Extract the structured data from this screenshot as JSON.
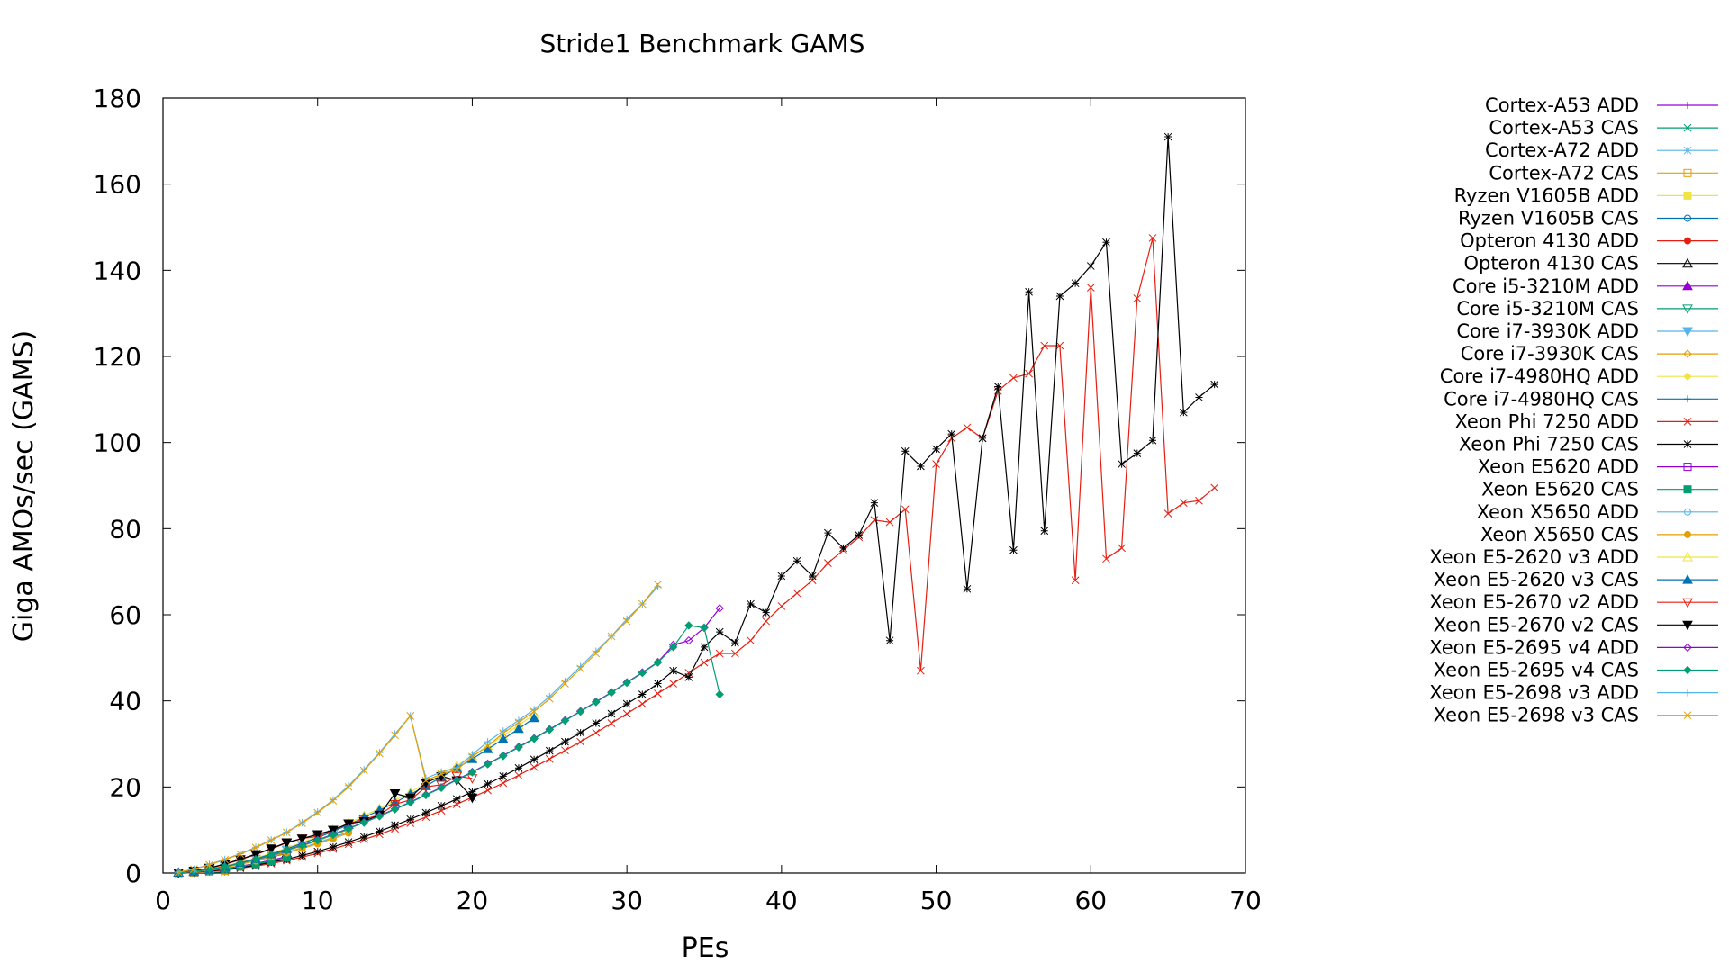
{
  "chart_data": {
    "type": "line",
    "title": "Stride1 Benchmark GAMS",
    "xlabel": "PEs",
    "ylabel": "Giga AMOs/sec (GAMS)",
    "xlim": [
      0,
      70
    ],
    "ylim": [
      0,
      180
    ],
    "xticks": [
      "0",
      "10",
      "20",
      "30",
      "40",
      "50",
      "60",
      "70"
    ],
    "yticks": [
      "0",
      "20",
      "40",
      "60",
      "80",
      "100",
      "120",
      "140",
      "160",
      "180"
    ],
    "grid": false,
    "legend_position": "right",
    "series": [
      {
        "name": "Cortex-A53 ADD",
        "color": "#9400d3",
        "marker": "plus",
        "x": [
          1,
          2,
          3,
          4
        ],
        "y": [
          0.0,
          0.1,
          0.2,
          0.3
        ]
      },
      {
        "name": "Cortex-A53 CAS",
        "color": "#009e73",
        "marker": "cross",
        "x": [
          1,
          2,
          3,
          4
        ],
        "y": [
          0.0,
          0.1,
          0.2,
          0.3
        ]
      },
      {
        "name": "Cortex-A72 ADD",
        "color": "#56b4e9",
        "marker": "star",
        "x": [
          1,
          2,
          3,
          4
        ],
        "y": [
          0.0,
          0.1,
          0.3,
          0.5
        ]
      },
      {
        "name": "Cortex-A72 CAS",
        "color": "#e69f00",
        "marker": "square-open",
        "x": [
          1,
          2,
          3,
          4
        ],
        "y": [
          0.0,
          0.1,
          0.3,
          0.5
        ]
      },
      {
        "name": "Ryzen V1605B ADD",
        "color": "#f0e442",
        "marker": "square-filled",
        "x": [
          1,
          2,
          3,
          4,
          5,
          6,
          7,
          8
        ],
        "y": [
          0.1,
          0.2,
          0.6,
          1.1,
          1.6,
          2.2,
          2.8,
          3.4
        ]
      },
      {
        "name": "Ryzen V1605B CAS",
        "color": "#0072b2",
        "marker": "circle-open",
        "x": [
          1,
          2,
          3,
          4,
          5,
          6,
          7,
          8
        ],
        "y": [
          0.1,
          0.2,
          0.5,
          1.0,
          1.5,
          2.0,
          2.6,
          3.2
        ]
      },
      {
        "name": "Opteron 4130 ADD",
        "color": "#e51e10",
        "marker": "circle-filled",
        "x": [
          1,
          2,
          3,
          4,
          5,
          6,
          7,
          8
        ],
        "y": [
          0.1,
          0.3,
          0.8,
          1.5,
          2.3,
          3.1,
          4.0,
          4.9
        ]
      },
      {
        "name": "Opteron 4130 CAS",
        "color": "#000000",
        "marker": "triangle-open",
        "x": [
          1,
          2,
          3,
          4,
          5,
          6,
          7,
          8
        ],
        "y": [
          0.1,
          0.3,
          0.7,
          1.4,
          2.1,
          2.9,
          3.7,
          4.6
        ]
      },
      {
        "name": "Core i5-3210M ADD",
        "color": "#9400d3",
        "marker": "triangle-filled",
        "x": [
          1,
          2,
          3,
          4
        ],
        "y": [
          0.1,
          0.3,
          0.7,
          1.2
        ]
      },
      {
        "name": "Core i5-3210M CAS",
        "color": "#009e73",
        "marker": "triangle-down-open",
        "x": [
          1,
          2,
          3,
          4
        ],
        "y": [
          0.1,
          0.3,
          0.6,
          1.1
        ]
      },
      {
        "name": "Core i7-3930K ADD",
        "color": "#56b4e9",
        "marker": "triangle-down-filled",
        "x": [
          1,
          2,
          3,
          4,
          5,
          6,
          7,
          8,
          9,
          10,
          11,
          12
        ],
        "y": [
          0.1,
          0.4,
          0.9,
          1.6,
          2.4,
          3.3,
          4.3,
          5.4,
          6.5,
          7.7,
          9.0,
          10.3
        ]
      },
      {
        "name": "Core i7-3930K CAS",
        "color": "#e69f00",
        "marker": "diamond-open",
        "x": [
          1,
          2,
          3,
          4,
          5,
          6,
          7,
          8,
          9,
          10,
          11,
          12
        ],
        "y": [
          0.1,
          0.4,
          0.9,
          1.5,
          2.3,
          3.2,
          4.2,
          5.2,
          6.3,
          7.5,
          8.8,
          10.1
        ]
      },
      {
        "name": "Core i7-4980HQ ADD",
        "color": "#f0e442",
        "marker": "diamond-filled",
        "x": [
          1,
          2,
          3,
          4,
          5,
          6,
          7,
          8
        ],
        "y": [
          0.1,
          0.4,
          0.9,
          1.6,
          2.5,
          3.4,
          4.4,
          5.5
        ]
      },
      {
        "name": "Core i7-4980HQ CAS",
        "color": "#0072b2",
        "marker": "plus",
        "x": [
          1,
          2,
          3,
          4,
          5,
          6,
          7,
          8
        ],
        "y": [
          0.1,
          0.4,
          0.9,
          1.5,
          2.4,
          3.3,
          4.3,
          5.3
        ]
      },
      {
        "name": "Xeon Phi 7250 ADD",
        "color": "#e51e10",
        "marker": "cross",
        "x": [
          1,
          2,
          3,
          4,
          5,
          6,
          7,
          8,
          9,
          10,
          11,
          12,
          13,
          14,
          15,
          16,
          17,
          18,
          19,
          20,
          21,
          22,
          23,
          24,
          25,
          26,
          27,
          28,
          29,
          30,
          31,
          32,
          33,
          34,
          35,
          36,
          37,
          38,
          39,
          40,
          41,
          42,
          43,
          44,
          45,
          46,
          47,
          48,
          49,
          50,
          51,
          52,
          53,
          54,
          55,
          56,
          57,
          58,
          59,
          60,
          61,
          62,
          63,
          64,
          65,
          66,
          67,
          68
        ],
        "y": [
          0.0,
          0.2,
          0.4,
          0.7,
          1.1,
          1.6,
          2.2,
          2.9,
          3.7,
          4.6,
          5.6,
          6.7,
          7.8,
          9.0,
          10.3,
          11.6,
          13.0,
          14.5,
          16.0,
          17.6,
          19.2,
          20.9,
          22.7,
          24.6,
          26.5,
          28.5,
          30.5,
          32.6,
          34.8,
          37.0,
          39.3,
          41.7,
          44.0,
          46.5,
          48.9,
          51.0,
          51.0,
          54.0,
          58.5,
          62.0,
          65.0,
          68.0,
          72.0,
          75.0,
          78.0,
          82.0,
          81.5,
          84.5,
          47.0,
          95.0,
          101.0,
          103.5,
          101.0,
          112.0,
          115.0,
          116.0,
          122.5,
          122.5,
          68.0,
          136.0,
          73.0,
          75.5,
          133.5,
          147.5,
          83.5,
          86.0,
          86.5,
          89.5
        ]
      },
      {
        "name": "Xeon Phi 7250 CAS",
        "color": "#000000",
        "marker": "star",
        "x": [
          1,
          2,
          3,
          4,
          5,
          6,
          7,
          8,
          9,
          10,
          11,
          12,
          13,
          14,
          15,
          16,
          17,
          18,
          19,
          20,
          21,
          22,
          23,
          24,
          25,
          26,
          27,
          28,
          29,
          30,
          31,
          32,
          33,
          34,
          35,
          36,
          37,
          38,
          39,
          40,
          41,
          42,
          43,
          44,
          45,
          46,
          47,
          48,
          49,
          50,
          51,
          52,
          53,
          54,
          55,
          56,
          57,
          58,
          59,
          60,
          61,
          62,
          63,
          64,
          65,
          66,
          67,
          68
        ],
        "y": [
          0.0,
          0.2,
          0.5,
          0.8,
          1.3,
          1.8,
          2.5,
          3.2,
          4.1,
          5.0,
          6.1,
          7.2,
          8.4,
          9.7,
          11.1,
          12.5,
          14.0,
          15.6,
          17.2,
          18.9,
          20.7,
          22.5,
          24.4,
          26.4,
          28.4,
          30.5,
          32.6,
          34.8,
          37.0,
          39.3,
          41.5,
          44.0,
          47.0,
          45.5,
          52.5,
          56.0,
          53.5,
          62.5,
          60.5,
          69.0,
          72.5,
          69.0,
          79.0,
          75.5,
          78.5,
          86.0,
          54.0,
          98.0,
          94.5,
          98.5,
          102.0,
          66.0,
          101.0,
          113.0,
          75.0,
          135.0,
          79.5,
          134.0,
          137.0,
          141.0,
          146.5,
          95.0,
          97.5,
          100.5,
          171.0,
          107.0,
          110.5,
          113.5
        ]
      },
      {
        "name": "Xeon E5620 ADD",
        "color": "#9400d3",
        "marker": "square-open",
        "x": [
          1,
          2,
          3,
          4,
          5,
          6,
          7,
          8
        ],
        "y": [
          0.1,
          0.3,
          0.6,
          1.0,
          1.6,
          2.2,
          3.0,
          3.8
        ]
      },
      {
        "name": "Xeon E5620 CAS",
        "color": "#009e73",
        "marker": "square-filled",
        "x": [
          1,
          2,
          3,
          4,
          5,
          6,
          7,
          8
        ],
        "y": [
          0.1,
          0.3,
          0.6,
          1.0,
          1.5,
          2.1,
          2.8,
          3.6
        ]
      },
      {
        "name": "Xeon X5650 ADD",
        "color": "#56b4e9",
        "marker": "circle-open",
        "x": [
          1,
          2,
          3,
          4,
          5,
          6,
          7,
          8,
          9,
          10,
          11,
          12
        ],
        "y": [
          0.1,
          0.3,
          0.8,
          1.4,
          2.1,
          2.9,
          3.8,
          4.8,
          5.9,
          7.0,
          8.3,
          9.6
        ]
      },
      {
        "name": "Xeon X5650 CAS",
        "color": "#e69f00",
        "marker": "circle-filled",
        "x": [
          1,
          2,
          3,
          4,
          5,
          6,
          7,
          8,
          9,
          10,
          11,
          12
        ],
        "y": [
          0.1,
          0.3,
          0.7,
          1.3,
          2.0,
          2.8,
          3.7,
          4.7,
          5.7,
          6.8,
          8.0,
          9.3
        ]
      },
      {
        "name": "Xeon E5-2620 v3 ADD",
        "color": "#f0e442",
        "marker": "triangle-open",
        "x": [
          1,
          2,
          3,
          4,
          5,
          6,
          7,
          8,
          9,
          10,
          11,
          12,
          13,
          14,
          15,
          16,
          17,
          18,
          19,
          20,
          21,
          22,
          23,
          24
        ],
        "y": [
          0.1,
          0.4,
          0.9,
          1.6,
          2.5,
          3.5,
          4.6,
          5.8,
          7.1,
          8.5,
          10.0,
          11.6,
          13.3,
          15.0,
          16.9,
          18.8,
          20.8,
          22.9,
          25.0,
          27.2,
          29.5,
          31.9,
          34.3,
          36.8
        ]
      },
      {
        "name": "Xeon E5-2620 v3 CAS",
        "color": "#0072b2",
        "marker": "triangle-filled",
        "x": [
          1,
          2,
          3,
          4,
          5,
          6,
          7,
          8,
          9,
          10,
          11,
          12,
          13,
          14,
          15,
          16,
          17,
          18,
          19,
          20,
          21,
          22,
          23,
          24
        ],
        "y": [
          0.1,
          0.4,
          0.8,
          1.5,
          2.4,
          3.3,
          4.4,
          5.6,
          6.9,
          8.2,
          9.7,
          11.2,
          12.9,
          14.6,
          16.4,
          18.3,
          20.2,
          22.3,
          24.4,
          26.5,
          28.8,
          31.1,
          33.5,
          36.0
        ]
      },
      {
        "name": "Xeon E5-2670 v2 ADD",
        "color": "#e51e10",
        "marker": "triangle-down-open",
        "x": [
          1,
          2,
          3,
          4,
          5,
          6,
          7,
          8,
          9,
          10,
          11,
          12,
          13,
          14,
          15,
          16,
          17,
          18,
          19,
          20
        ],
        "y": [
          0.1,
          0.5,
          1.1,
          2.0,
          3.1,
          4.3,
          5.6,
          7.0,
          8.0,
          8.5,
          10.0,
          11.5,
          12.5,
          13.5,
          16.0,
          17.0,
          20.0,
          20.5,
          22.5,
          22.0
        ]
      },
      {
        "name": "Xeon E5-2670 v2 CAS",
        "color": "#000000",
        "marker": "triangle-down-filled",
        "x": [
          1,
          2,
          3,
          4,
          5,
          6,
          7,
          8,
          9,
          10,
          11,
          12,
          13,
          14,
          15,
          16,
          17,
          18,
          19,
          20
        ],
        "y": [
          0.1,
          0.5,
          1.2,
          2.1,
          3.2,
          4.4,
          5.7,
          7.1,
          8.0,
          9.0,
          10.0,
          11.5,
          12.0,
          13.5,
          18.5,
          17.5,
          21.0,
          22.5,
          21.5,
          17.5
        ]
      },
      {
        "name": "Xeon E5-2695 v4 ADD",
        "color": "#9400d3",
        "marker": "diamond-open",
        "x": [
          1,
          2,
          3,
          4,
          5,
          6,
          7,
          8,
          9,
          10,
          11,
          12,
          13,
          14,
          15,
          16,
          17,
          18,
          19,
          20,
          21,
          22,
          23,
          24,
          25,
          26,
          27,
          28,
          29,
          30,
          31,
          32,
          33,
          34,
          35,
          36
        ],
        "y": [
          0.1,
          0.4,
          0.9,
          1.5,
          2.3,
          3.2,
          4.2,
          5.3,
          6.5,
          7.7,
          9.0,
          10.4,
          11.8,
          13.3,
          14.9,
          16.5,
          18.2,
          19.9,
          21.7,
          23.5,
          25.4,
          27.3,
          29.3,
          31.3,
          33.4,
          35.5,
          37.6,
          39.8,
          42.0,
          44.3,
          46.6,
          49.0,
          53.0,
          54.0,
          57.0,
          61.5
        ]
      },
      {
        "name": "Xeon E5-2695 v4 CAS",
        "color": "#009e73",
        "marker": "diamond-filled",
        "x": [
          1,
          2,
          3,
          4,
          5,
          6,
          7,
          8,
          9,
          10,
          11,
          12,
          13,
          14,
          15,
          16,
          17,
          18,
          19,
          20,
          21,
          22,
          23,
          24,
          25,
          26,
          27,
          28,
          29,
          30,
          31,
          32,
          33,
          34,
          35,
          36
        ],
        "y": [
          0.1,
          0.4,
          0.9,
          1.5,
          2.3,
          3.2,
          4.2,
          5.3,
          6.4,
          7.6,
          8.9,
          10.3,
          11.7,
          13.2,
          14.8,
          16.4,
          18.1,
          19.8,
          21.6,
          23.4,
          25.3,
          27.2,
          29.2,
          31.2,
          33.3,
          35.4,
          37.5,
          39.7,
          41.9,
          44.2,
          46.5,
          48.9,
          52.5,
          57.5,
          57.0,
          41.5
        ]
      },
      {
        "name": "Xeon E5-2698 v3 ADD",
        "color": "#56b4e9",
        "marker": "plus",
        "x": [
          1,
          2,
          3,
          4,
          5,
          6,
          7,
          8,
          9,
          10,
          11,
          12,
          13,
          14,
          15,
          16,
          17,
          18,
          19,
          20,
          21,
          22,
          23,
          24,
          25,
          26,
          27,
          28,
          29,
          30,
          31,
          32
        ],
        "y": [
          0.2,
          0.9,
          2.0,
          3.2,
          4.5,
          6.0,
          7.7,
          9.5,
          11.7,
          14.2,
          17.0,
          20.3,
          24.0,
          28.0,
          32.3,
          36.5,
          22.0,
          23.5,
          24.5,
          27.5,
          30.5,
          33.0,
          35.5,
          38.0,
          41.0,
          44.5,
          48.0,
          51.5,
          55.0,
          59.0,
          62.5,
          66.5
        ]
      },
      {
        "name": "Xeon E5-2698 v3 CAS",
        "color": "#e69f00",
        "marker": "cross",
        "x": [
          1,
          2,
          3,
          4,
          5,
          6,
          7,
          8,
          9,
          10,
          11,
          12,
          13,
          14,
          15,
          16,
          17,
          18,
          19,
          20,
          21,
          22,
          23,
          24,
          25,
          26,
          27,
          28,
          29,
          30,
          31,
          32
        ],
        "y": [
          0.2,
          0.9,
          1.9,
          3.1,
          4.4,
          5.9,
          7.6,
          9.4,
          11.6,
          14.0,
          16.8,
          20.0,
          23.8,
          27.8,
          32.0,
          36.5,
          21.5,
          23.0,
          24.0,
          27.0,
          29.5,
          32.5,
          35.0,
          37.5,
          40.5,
          44.0,
          47.5,
          51.0,
          55.0,
          58.5,
          62.5,
          67.0
        ]
      }
    ]
  }
}
